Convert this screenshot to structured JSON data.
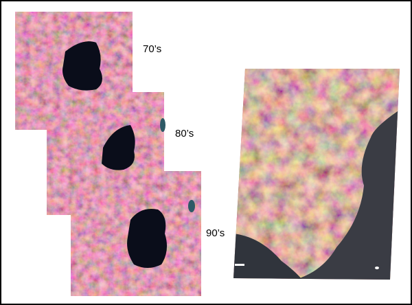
{
  "labels": [
    "70’s",
    "80’s",
    "90’s"
  ]
}
